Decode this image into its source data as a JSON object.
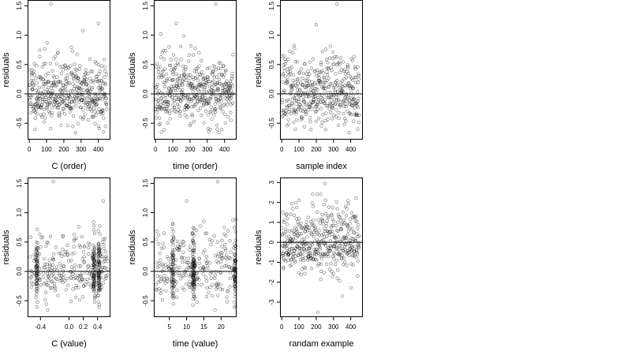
{
  "chart_data": [
    {
      "type": "scatter",
      "xlabel": "C (order)",
      "ylabel": "residuals",
      "xlim": [
        -10,
        470
      ],
      "ylim": [
        -0.78,
        1.6
      ],
      "xticks": [
        0,
        100,
        200,
        300,
        400
      ],
      "xtick_labels": [
        "0",
        "100",
        "200",
        "300",
        "400"
      ],
      "yticks": [
        -0.5,
        0.0,
        0.5,
        1.0,
        1.5
      ],
      "ytick_labels": [
        "-0.5",
        "0.0",
        "0.5",
        "1.0",
        "1.5"
      ],
      "hline": 0,
      "generator": {
        "kind": "index",
        "n": 450,
        "sd": 0.32,
        "seed": 11,
        "outliers": [
          [
            125,
            1.53
          ],
          [
            310,
            1.08
          ],
          [
            400,
            1.2
          ]
        ]
      }
    },
    {
      "type": "scatter",
      "xlabel": "time (order)",
      "ylabel": "residuals",
      "xlim": [
        -10,
        470
      ],
      "ylim": [
        -0.78,
        1.6
      ],
      "xticks": [
        0,
        100,
        200,
        300,
        400
      ],
      "xtick_labels": [
        "0",
        "100",
        "200",
        "300",
        "400"
      ],
      "yticks": [
        -0.5,
        0.0,
        0.5,
        1.0,
        1.5
      ],
      "ytick_labels": [
        "-0.5",
        "0.0",
        "0.5",
        "1.0",
        "1.5"
      ],
      "hline": 0,
      "generator": {
        "kind": "index",
        "n": 450,
        "sd": 0.32,
        "seed": 23,
        "outliers": [
          [
            350,
            1.53
          ],
          [
            120,
            1.2
          ],
          [
            30,
            1.02
          ]
        ]
      }
    },
    {
      "type": "scatter",
      "xlabel": "sample index",
      "ylabel": "residuals",
      "xlim": [
        -10,
        470
      ],
      "ylim": [
        -0.78,
        1.6
      ],
      "xticks": [
        0,
        100,
        200,
        300,
        400
      ],
      "xtick_labels": [
        "0",
        "100",
        "200",
        "300",
        "400"
      ],
      "yticks": [
        -0.5,
        0.0,
        0.5,
        1.0,
        1.5
      ],
      "ytick_labels": [
        "-0.5",
        "0.0",
        "0.5",
        "1.0",
        "1.5"
      ],
      "hline": 0,
      "generator": {
        "kind": "index",
        "n": 450,
        "sd": 0.34,
        "seed": 37,
        "outliers": [
          [
            320,
            1.53
          ],
          [
            200,
            1.18
          ],
          [
            440,
            -0.6
          ]
        ]
      }
    },
    {
      "type": "scatter",
      "xlabel": "C (value)",
      "ylabel": "residuals",
      "xlim": [
        -0.58,
        0.58
      ],
      "ylim": [
        -0.78,
        1.6
      ],
      "xticks": [
        -0.4,
        0.0,
        0.2,
        0.4
      ],
      "xtick_labels": [
        "-0.4",
        "0.0",
        "0.2",
        "0.4"
      ],
      "yticks": [
        -0.5,
        0.0,
        0.5,
        1.0,
        1.5
      ],
      "ytick_labels": [
        "-0.5",
        "0.0",
        "0.5",
        "1.0",
        "1.5"
      ],
      "hline": 0,
      "generator": {
        "kind": "value",
        "n": 450,
        "sd": 0.32,
        "seed": 51,
        "xmin": -0.55,
        "xmax": 0.55,
        "clusters": [
          -0.45,
          0.35,
          0.42
        ],
        "outliers": [
          [
            -0.22,
            1.53
          ],
          [
            0.48,
            1.2
          ]
        ]
      }
    },
    {
      "type": "scatter",
      "xlabel": "time (value)",
      "ylabel": "residuals",
      "xlim": [
        0.5,
        24.5
      ],
      "ylim": [
        -0.78,
        1.6
      ],
      "xticks": [
        5,
        10,
        15,
        20
      ],
      "xtick_labels": [
        "5",
        "10",
        "15",
        "20"
      ],
      "yticks": [
        -0.5,
        0.0,
        0.5,
        1.0,
        1.5
      ],
      "ytick_labels": [
        "-0.5",
        "0.0",
        "0.5",
        "1.0",
        "1.5"
      ],
      "hline": 0,
      "generator": {
        "kind": "value",
        "n": 450,
        "sd": 0.32,
        "seed": 67,
        "xmin": 1,
        "xmax": 24,
        "clusters": [
          12,
          6,
          24
        ],
        "outliers": [
          [
            19,
            1.53
          ],
          [
            10,
            1.2
          ]
        ]
      }
    },
    {
      "type": "scatter",
      "xlabel": "randam example",
      "ylabel": "residuals",
      "xlim": [
        -10,
        470
      ],
      "ylim": [
        -3.75,
        3.25
      ],
      "xticks": [
        0,
        100,
        200,
        300,
        400
      ],
      "xtick_labels": [
        "0",
        "100",
        "200",
        "300",
        "400"
      ],
      "yticks": [
        -3,
        -2,
        -1,
        0,
        1,
        2,
        3
      ],
      "ytick_labels": [
        "-3",
        "-2",
        "-1",
        "0",
        "1",
        "2",
        "3"
      ],
      "hline": 0,
      "generator": {
        "kind": "index",
        "n": 450,
        "sd": 1.0,
        "seed": 89,
        "outliers": [
          [
            210,
            -3.5
          ],
          [
            250,
            2.95
          ]
        ]
      }
    }
  ]
}
